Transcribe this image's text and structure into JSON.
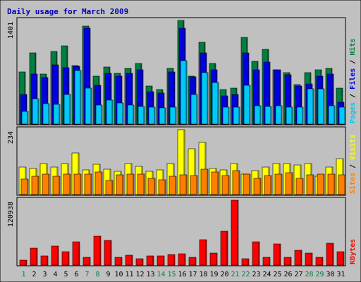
{
  "chart_data": {
    "type": "bar",
    "title": "Daily usage for March 2009",
    "categories": [
      "1",
      "2",
      "3",
      "4",
      "5",
      "6",
      "7",
      "8",
      "9",
      "10",
      "11",
      "12",
      "13",
      "14",
      "15",
      "16",
      "17",
      "18",
      "19",
      "20",
      "21",
      "22",
      "23",
      "24",
      "25",
      "26",
      "27",
      "28",
      "29",
      "30",
      "31"
    ],
    "weekend_days": [
      "1",
      "7",
      "8",
      "14",
      "15",
      "21",
      "22",
      "28",
      "29"
    ],
    "panels": [
      {
        "id": "hits-files-pages",
        "ymax_label": "1401",
        "ymax": 1401,
        "legend": [
          {
            "text": "Pages",
            "color": "#00c8f8"
          },
          {
            "text": " / ",
            "color": "#000000"
          },
          {
            "text": "Files",
            "color": "#0000e0"
          },
          {
            "text": " / ",
            "color": "#000000"
          },
          {
            "text": "Hits",
            "color": "#008040"
          }
        ],
        "series": [
          {
            "name": "Hits",
            "color": "#008040",
            "values": [
              710,
              960,
              680,
              980,
              1060,
              790,
              1320,
              650,
              770,
              690,
              750,
              820,
              510,
              470,
              750,
              1401,
              650,
              1110,
              820,
              470,
              490,
              1170,
              850,
              1010,
              730,
              700,
              530,
              700,
              730,
              750,
              490
            ]
          },
          {
            "name": "Files",
            "color": "#0000e0",
            "values": [
              400,
              680,
              630,
              800,
              760,
              780,
              1300,
              520,
              690,
              650,
              690,
              730,
              440,
              420,
              710,
              1300,
              640,
              960,
              730,
              380,
              400,
              960,
              730,
              840,
              730,
              670,
              510,
              540,
              650,
              680,
              300
            ]
          },
          {
            "name": "Pages",
            "color": "#00c8f8",
            "values": [
              170,
              340,
              280,
              270,
              400,
              720,
              490,
              260,
              320,
              290,
              260,
              240,
              230,
              220,
              230,
              860,
              400,
              700,
              560,
              230,
              230,
              520,
              250,
              240,
              250,
              230,
              230,
              480,
              480,
              250,
              230
            ]
          }
        ]
      },
      {
        "id": "visits-sites",
        "ymax_label": "234",
        "ymax": 234,
        "legend": [
          {
            "text": "Sites",
            "color": "#ff8000"
          },
          {
            "text": " / ",
            "color": "#000000"
          },
          {
            "text": "Visits",
            "color": "#ffff00"
          }
        ],
        "series": [
          {
            "name": "Visits",
            "color": "#ffff00",
            "values": [
              100,
              95,
              113,
              98,
              113,
              150,
              88,
              110,
              91,
              84,
              113,
              103,
              85,
              88,
              113,
              234,
              165,
              188,
              95,
              88,
              111,
              73,
              87,
              99,
              112,
              111,
              106,
              112,
              67,
              98,
              130
            ]
          },
          {
            "name": "Sites",
            "color": "#ff8000",
            "values": [
              55,
              67,
              73,
              67,
              74,
              73,
              73,
              82,
              52,
              71,
              73,
              73,
              58,
              54,
              66,
              70,
              69,
              91,
              81,
              68,
              87,
              74,
              58,
              69,
              73,
              79,
              58,
              70,
              73,
              74,
              70
            ]
          }
        ]
      },
      {
        "id": "kbytes",
        "ymax_label": "120938",
        "ymax": 120938,
        "legend": [
          {
            "text": "KBytes",
            "color": "#ff0000"
          }
        ],
        "series": [
          {
            "name": "KBytes",
            "color": "#ff0000",
            "values": [
              9000,
              31000,
              17000,
              35000,
              25000,
              44000,
              15000,
              54000,
              46000,
              14000,
              19000,
              12000,
              17000,
              17000,
              20000,
              21000,
              14000,
              47000,
              23000,
              63000,
              120938,
              12000,
              44000,
              14000,
              39000,
              15000,
              27000,
              23000,
              15000,
              41000,
              25000
            ]
          }
        ]
      }
    ]
  }
}
